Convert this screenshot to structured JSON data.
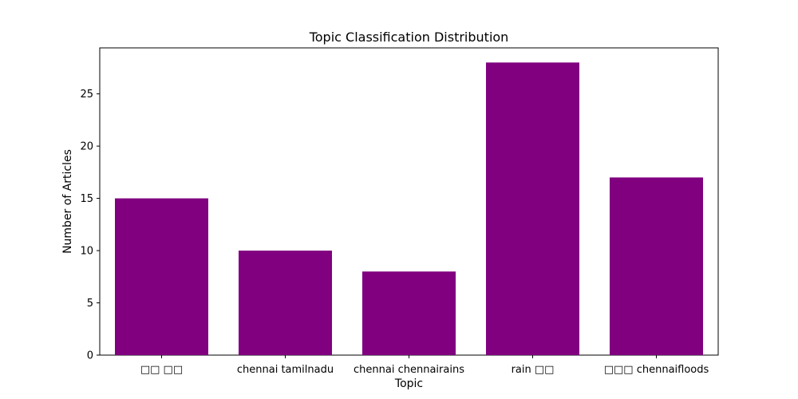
{
  "chart_data": {
    "type": "bar",
    "title": "Topic Classification Distribution",
    "xlabel": "Topic",
    "ylabel": "Number of Articles",
    "categories": [
      "□□ □□",
      "chennai tamilnadu",
      "chennai chennairains",
      "rain □□",
      "□□□ chennaifloods"
    ],
    "values": [
      15,
      10,
      8,
      28,
      17
    ],
    "ylim": [
      0,
      29.4
    ],
    "yticks": [
      0,
      5,
      10,
      15,
      20,
      25
    ],
    "grid": false,
    "bar_color": "#800080"
  }
}
